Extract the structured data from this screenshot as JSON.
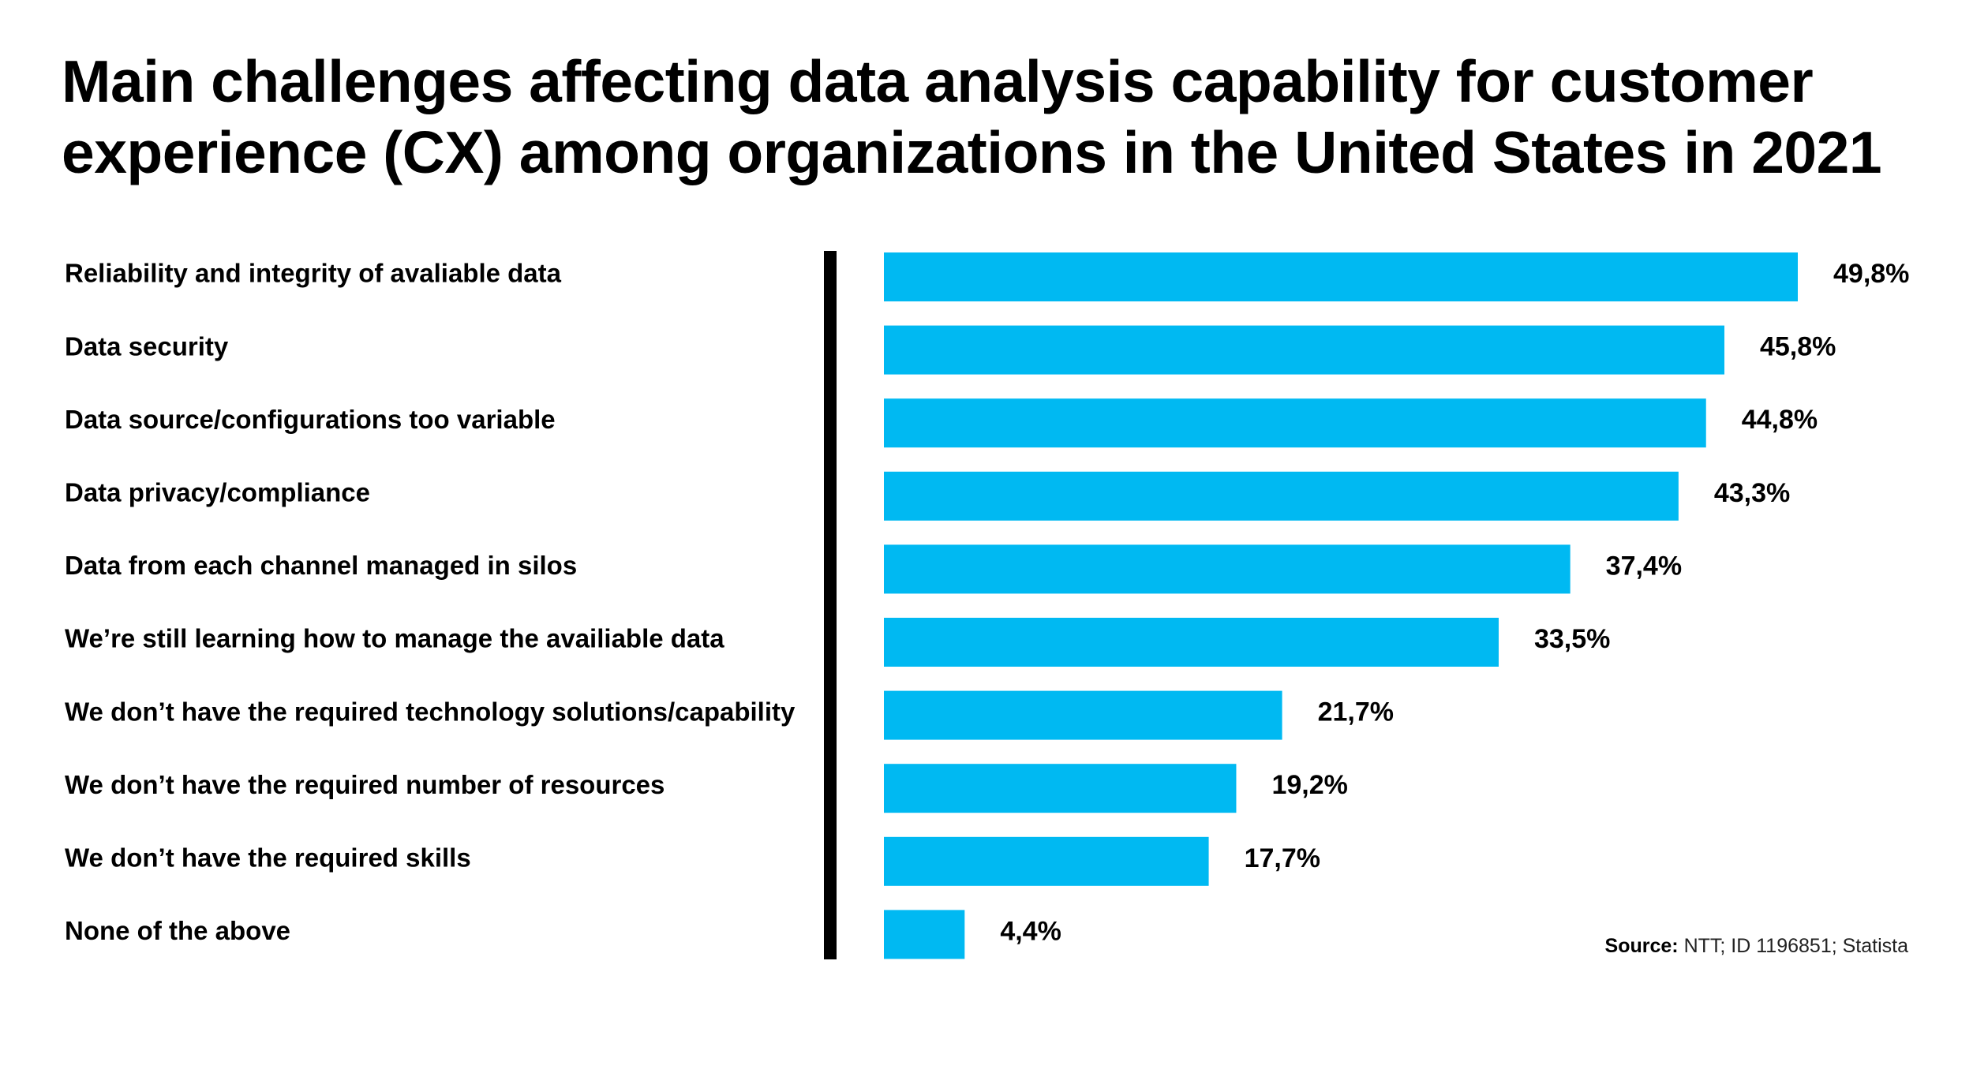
{
  "chart_data": {
    "type": "bar",
    "orientation": "horizontal",
    "title": "Main challenges affecting data analysis capability for customer experience (CX) among organizations in the United States in 2021",
    "categories": [
      "Reliability and integrity of avaliable data",
      "Data security",
      "Data source/configurations too variable",
      "Data privacy/compliance",
      "Data from each channel managed in silos",
      "We’re still learning how to manage the availiable data",
      "We don’t have the required technology solutions/capability",
      "We don’t have the required number of resources",
      "We don’t have the required skills",
      "None of the above"
    ],
    "values": [
      49.8,
      45.8,
      44.8,
      43.3,
      37.4,
      33.5,
      21.7,
      19.2,
      17.7,
      4.4
    ],
    "value_labels": [
      "49,8%",
      "45,8%",
      "44,8%",
      "43,3%",
      "37,4%",
      "33,5%",
      "21,7%",
      "19,2%",
      "17,7%",
      "4,4%"
    ],
    "xlim": [
      0,
      49.8
    ],
    "bar_color": "#00B9F2",
    "axis_color": "#000000",
    "grid": false,
    "legend": false
  },
  "source": {
    "label": "Source:",
    "text": "NTT; ID 1196851; Statista"
  }
}
